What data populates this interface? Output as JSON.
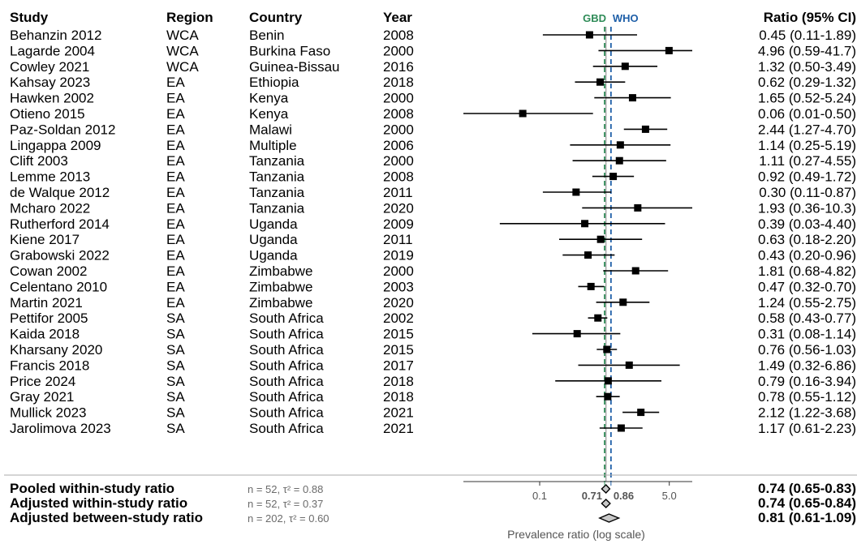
{
  "chart_data": {
    "type": "forest",
    "columns": {
      "study": "Study",
      "region": "Region",
      "country": "Country",
      "year": "Year",
      "ratio": "Ratio (95% CI)"
    },
    "x_scale": "log",
    "xlim": [
      0.01,
      10
    ],
    "xlabel": "Prevalence ratio (log scale)",
    "ticks": [
      {
        "value": 0.1,
        "label": "0.1"
      },
      {
        "value": 0.71,
        "label": "0.71",
        "color": "#2e8b57"
      },
      {
        "value": 0.86,
        "label": "0.86",
        "color": "#1f5fa8"
      },
      {
        "value": 5.0,
        "label": "5.0"
      }
    ],
    "reference_lines": [
      {
        "label": "GBD",
        "value": 0.71,
        "color": "#2e8b57"
      },
      {
        "label": "WHO",
        "value": 0.86,
        "color": "#1f5fa8"
      },
      {
        "label": "",
        "value": 0.74,
        "color": "#999999"
      }
    ],
    "studies": [
      {
        "study": "Behanzin 2012",
        "region": "WCA",
        "country": "Benin",
        "year": "2008",
        "est": 0.45,
        "lo": 0.11,
        "hi": 1.89,
        "ratio_text": "0.45 (0.11-1.89)"
      },
      {
        "study": "Lagarde 2004",
        "region": "WCA",
        "country": "Burkina Faso",
        "year": "2000",
        "est": 4.96,
        "lo": 0.59,
        "hi": 41.7,
        "ratio_text": "4.96 (0.59-41.7)"
      },
      {
        "study": "Cowley 2021",
        "region": "WCA",
        "country": "Guinea-Bissau",
        "year": "2016",
        "est": 1.32,
        "lo": 0.5,
        "hi": 3.49,
        "ratio_text": "1.32 (0.50-3.49)"
      },
      {
        "study": "Kahsay 2023",
        "region": "EA",
        "country": "Ethiopia",
        "year": "2018",
        "est": 0.62,
        "lo": 0.29,
        "hi": 1.32,
        "ratio_text": "0.62 (0.29-1.32)"
      },
      {
        "study": "Hawken 2002",
        "region": "EA",
        "country": "Kenya",
        "year": "2000",
        "est": 1.65,
        "lo": 0.52,
        "hi": 5.24,
        "ratio_text": "1.65 (0.52-5.24)"
      },
      {
        "study": "Otieno 2015",
        "region": "EA",
        "country": "Kenya",
        "year": "2008",
        "est": 0.06,
        "lo": 0.01,
        "hi": 0.5,
        "ratio_text": "0.06 (0.01-0.50)"
      },
      {
        "study": "Paz-Soldan 2012",
        "region": "EA",
        "country": "Malawi",
        "year": "2000",
        "est": 2.44,
        "lo": 1.27,
        "hi": 4.7,
        "ratio_text": "2.44 (1.27-4.70)"
      },
      {
        "study": "Lingappa 2009",
        "region": "EA",
        "country": "Multiple",
        "year": "2006",
        "est": 1.14,
        "lo": 0.25,
        "hi": 5.19,
        "ratio_text": "1.14 (0.25-5.19)"
      },
      {
        "study": "Clift 2003",
        "region": "EA",
        "country": "Tanzania",
        "year": "2000",
        "est": 1.11,
        "lo": 0.27,
        "hi": 4.55,
        "ratio_text": "1.11 (0.27-4.55)"
      },
      {
        "study": "Lemme 2013",
        "region": "EA",
        "country": "Tanzania",
        "year": "2008",
        "est": 0.92,
        "lo": 0.49,
        "hi": 1.72,
        "ratio_text": "0.92 (0.49-1.72)"
      },
      {
        "study": "de Walque 2012",
        "region": "EA",
        "country": "Tanzania",
        "year": "2011",
        "est": 0.3,
        "lo": 0.11,
        "hi": 0.87,
        "ratio_text": "0.30 (0.11-0.87)"
      },
      {
        "study": "Mcharo 2022",
        "region": "EA",
        "country": "Tanzania",
        "year": "2020",
        "est": 1.93,
        "lo": 0.36,
        "hi": 10.3,
        "ratio_text": "1.93 (0.36-10.3)"
      },
      {
        "study": "Rutherford 2014",
        "region": "EA",
        "country": "Uganda",
        "year": "2009",
        "est": 0.39,
        "lo": 0.03,
        "hi": 4.4,
        "ratio_text": "0.39 (0.03-4.40)"
      },
      {
        "study": "Kiene 2017",
        "region": "EA",
        "country": "Uganda",
        "year": "2011",
        "est": 0.63,
        "lo": 0.18,
        "hi": 2.2,
        "ratio_text": "0.63 (0.18-2.20)"
      },
      {
        "study": "Grabowski 2022",
        "region": "EA",
        "country": "Uganda",
        "year": "2019",
        "est": 0.43,
        "lo": 0.2,
        "hi": 0.96,
        "ratio_text": "0.43 (0.20-0.96)"
      },
      {
        "study": "Cowan 2002",
        "region": "EA",
        "country": "Zimbabwe",
        "year": "2000",
        "est": 1.81,
        "lo": 0.68,
        "hi": 4.82,
        "ratio_text": "1.81 (0.68-4.82)"
      },
      {
        "study": "Celentano 2010",
        "region": "EA",
        "country": "Zimbabwe",
        "year": "2003",
        "est": 0.47,
        "lo": 0.32,
        "hi": 0.7,
        "ratio_text": "0.47 (0.32-0.70)"
      },
      {
        "study": "Martin 2021",
        "region": "EA",
        "country": "Zimbabwe",
        "year": "2020",
        "est": 1.24,
        "lo": 0.55,
        "hi": 2.75,
        "ratio_text": "1.24 (0.55-2.75)"
      },
      {
        "study": "Pettifor 2005",
        "region": "SA",
        "country": "South Africa",
        "year": "2002",
        "est": 0.58,
        "lo": 0.43,
        "hi": 0.77,
        "ratio_text": "0.58 (0.43-0.77)"
      },
      {
        "study": "Kaida 2018",
        "region": "SA",
        "country": "South Africa",
        "year": "2015",
        "est": 0.31,
        "lo": 0.08,
        "hi": 1.14,
        "ratio_text": "0.31 (0.08-1.14)"
      },
      {
        "study": "Kharsany 2020",
        "region": "SA",
        "country": "South Africa",
        "year": "2015",
        "est": 0.76,
        "lo": 0.56,
        "hi": 1.03,
        "ratio_text": "0.76 (0.56-1.03)"
      },
      {
        "study": "Francis 2018",
        "region": "SA",
        "country": "South Africa",
        "year": "2017",
        "est": 1.49,
        "lo": 0.32,
        "hi": 6.86,
        "ratio_text": "1.49 (0.32-6.86)"
      },
      {
        "study": "Price 2024",
        "region": "SA",
        "country": "South Africa",
        "year": "2018",
        "est": 0.79,
        "lo": 0.16,
        "hi": 3.94,
        "ratio_text": "0.79 (0.16-3.94)"
      },
      {
        "study": "Gray 2021",
        "region": "SA",
        "country": "South Africa",
        "year": "2018",
        "est": 0.78,
        "lo": 0.55,
        "hi": 1.12,
        "ratio_text": "0.78 (0.55-1.12)"
      },
      {
        "study": "Mullick 2023",
        "region": "SA",
        "country": "South Africa",
        "year": "2021",
        "est": 2.12,
        "lo": 1.22,
        "hi": 3.68,
        "ratio_text": "2.12 (1.22-3.68)"
      },
      {
        "study": "Jarolimova 2023",
        "region": "SA",
        "country": "South Africa",
        "year": "2021",
        "est": 1.17,
        "lo": 0.61,
        "hi": 2.23,
        "ratio_text": "1.17 (0.61-2.23)"
      }
    ],
    "summaries": [
      {
        "label": "Pooled within-study ratio",
        "stats": "n = 52, τ² = 0.88",
        "est": 0.74,
        "lo": 0.65,
        "hi": 0.83,
        "ratio_text": "0.74 (0.65-0.83)"
      },
      {
        "label": "Adjusted within-study ratio",
        "stats": "n = 52, τ² = 0.37",
        "est": 0.74,
        "lo": 0.65,
        "hi": 0.84,
        "ratio_text": "0.74 (0.65-0.84)"
      },
      {
        "label": "Adjusted between-study ratio",
        "stats": "n = 202, τ² = 0.60",
        "est": 0.81,
        "lo": 0.61,
        "hi": 1.09,
        "ratio_text": "0.81 (0.61-1.09)"
      }
    ]
  }
}
